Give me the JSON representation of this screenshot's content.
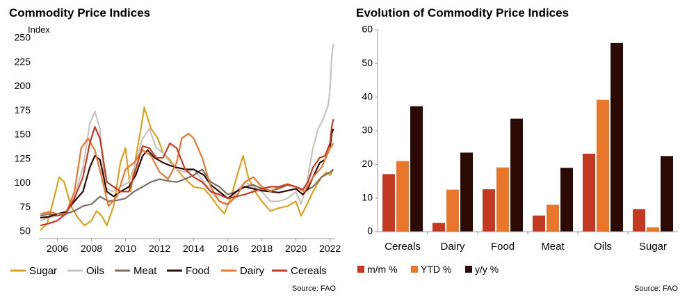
{
  "chart_data": [
    {
      "type": "line",
      "title": "Commodity Price Indices",
      "ylabel": "Index",
      "xlabel": "",
      "x_range": [
        2005,
        2022.3
      ],
      "x_ticks": [
        "2006",
        "2008",
        "2010",
        "2012",
        "2014",
        "2016",
        "2018",
        "2020",
        "2022"
      ],
      "ylim": [
        50,
        250
      ],
      "y_ticks": [
        "50",
        "75",
        "100",
        "125",
        "150",
        "175",
        "200",
        "225",
        "250"
      ],
      "grid": false,
      "legend_position": "bottom",
      "source": "Source: FAO",
      "series": [
        {
          "name": "Sugar",
          "color": "#D9A21B",
          "points": [
            [
              2005,
              55
            ],
            [
              2005.4,
              62
            ],
            [
              2005.8,
              88
            ],
            [
              2006.1,
              110
            ],
            [
              2006.4,
              105
            ],
            [
              2006.8,
              80
            ],
            [
              2007.2,
              68
            ],
            [
              2007.6,
              60
            ],
            [
              2008.0,
              65
            ],
            [
              2008.3,
              75
            ],
            [
              2008.6,
              70
            ],
            [
              2008.9,
              60
            ],
            [
              2009.3,
              80
            ],
            [
              2009.7,
              125
            ],
            [
              2010.0,
              140
            ],
            [
              2010.3,
              95
            ],
            [
              2010.6,
              130
            ],
            [
              2010.9,
              160
            ],
            [
              2011.1,
              182
            ],
            [
              2011.5,
              160
            ],
            [
              2011.9,
              150
            ],
            [
              2012.2,
              135
            ],
            [
              2012.6,
              128
            ],
            [
              2013.0,
              118
            ],
            [
              2013.5,
              108
            ],
            [
              2014.0,
              100
            ],
            [
              2014.6,
              98
            ],
            [
              2015.0,
              90
            ],
            [
              2015.5,
              78
            ],
            [
              2015.8,
              72
            ],
            [
              2016.2,
              90
            ],
            [
              2016.6,
              115
            ],
            [
              2016.9,
              132
            ],
            [
              2017.2,
              110
            ],
            [
              2017.6,
              95
            ],
            [
              2018.0,
              85
            ],
            [
              2018.5,
              75
            ],
            [
              2019.0,
              78
            ],
            [
              2019.5,
              80
            ],
            [
              2020.0,
              85
            ],
            [
              2020.3,
              70
            ],
            [
              2020.6,
              80
            ],
            [
              2021.0,
              95
            ],
            [
              2021.5,
              110
            ],
            [
              2021.8,
              115
            ],
            [
              2022.0,
              112
            ],
            [
              2022.2,
              118
            ]
          ]
        },
        {
          "name": "Oils",
          "color": "#C8C3BE",
          "points": [
            [
              2005,
              65
            ],
            [
              2005.5,
              68
            ],
            [
              2006.0,
              70
            ],
            [
              2006.5,
              72
            ],
            [
              2007.0,
              90
            ],
            [
              2007.5,
              120
            ],
            [
              2007.9,
              165
            ],
            [
              2008.2,
              178
            ],
            [
              2008.5,
              160
            ],
            [
              2008.8,
              100
            ],
            [
              2009.2,
              95
            ],
            [
              2009.7,
              100
            ],
            [
              2010.2,
              105
            ],
            [
              2010.6,
              125
            ],
            [
              2011.0,
              150
            ],
            [
              2011.4,
              160
            ],
            [
              2011.8,
              140
            ],
            [
              2012.2,
              135
            ],
            [
              2012.6,
              125
            ],
            [
              2013.0,
              118
            ],
            [
              2013.5,
              115
            ],
            [
              2014.0,
              118
            ],
            [
              2014.6,
              105
            ],
            [
              2015.0,
              95
            ],
            [
              2015.5,
              85
            ],
            [
              2016.0,
              80
            ],
            [
              2016.5,
              95
            ],
            [
              2017.0,
              105
            ],
            [
              2017.5,
              100
            ],
            [
              2018.0,
              95
            ],
            [
              2018.5,
              85
            ],
            [
              2019.0,
              85
            ],
            [
              2019.5,
              88
            ],
            [
              2020.0,
              95
            ],
            [
              2020.3,
              82
            ],
            [
              2020.6,
              100
            ],
            [
              2021.0,
              140
            ],
            [
              2021.3,
              160
            ],
            [
              2021.6,
              170
            ],
            [
              2021.9,
              185
            ],
            [
              2022.0,
              200
            ],
            [
              2022.1,
              235
            ],
            [
              2022.2,
              248
            ]
          ]
        },
        {
          "name": "Meat",
          "color": "#7B6E63",
          "points": [
            [
              2005,
              70
            ],
            [
              2005.5,
              72
            ],
            [
              2006.0,
              70
            ],
            [
              2006.5,
              72
            ],
            [
              2007.0,
              75
            ],
            [
              2007.5,
              80
            ],
            [
              2008.0,
              82
            ],
            [
              2008.5,
              90
            ],
            [
              2009.0,
              85
            ],
            [
              2009.5,
              86
            ],
            [
              2010.0,
              88
            ],
            [
              2010.5,
              95
            ],
            [
              2011.0,
              100
            ],
            [
              2011.5,
              105
            ],
            [
              2012.0,
              108
            ],
            [
              2012.5,
              106
            ],
            [
              2013.0,
              105
            ],
            [
              2013.5,
              108
            ],
            [
              2014.0,
              112
            ],
            [
              2014.5,
              118
            ],
            [
              2015.0,
              105
            ],
            [
              2015.5,
              100
            ],
            [
              2016.0,
              92
            ],
            [
              2016.5,
              95
            ],
            [
              2017.0,
              100
            ],
            [
              2017.5,
              102
            ],
            [
              2018.0,
              98
            ],
            [
              2018.5,
              96
            ],
            [
              2019.0,
              98
            ],
            [
              2019.5,
              102
            ],
            [
              2020.0,
              100
            ],
            [
              2020.5,
              95
            ],
            [
              2021.0,
              100
            ],
            [
              2021.5,
              110
            ],
            [
              2022.0,
              115
            ],
            [
              2022.2,
              118
            ]
          ]
        },
        {
          "name": "Food",
          "color": "#2B0A06",
          "points": [
            [
              2005,
              68
            ],
            [
              2005.5,
              69
            ],
            [
              2006.0,
              72
            ],
            [
              2006.5,
              74
            ],
            [
              2007.0,
              85
            ],
            [
              2007.5,
              95
            ],
            [
              2007.9,
              120
            ],
            [
              2008.2,
              132
            ],
            [
              2008.5,
              128
            ],
            [
              2008.9,
              95
            ],
            [
              2009.3,
              90
            ],
            [
              2009.7,
              95
            ],
            [
              2010.2,
              100
            ],
            [
              2010.6,
              112
            ],
            [
              2011.0,
              132
            ],
            [
              2011.3,
              138
            ],
            [
              2011.7,
              130
            ],
            [
              2012.2,
              125
            ],
            [
              2012.6,
              122
            ],
            [
              2013.0,
              120
            ],
            [
              2013.5,
              118
            ],
            [
              2014.0,
              118
            ],
            [
              2014.6,
              112
            ],
            [
              2015.0,
              102
            ],
            [
              2015.5,
              95
            ],
            [
              2016.0,
              88
            ],
            [
              2016.5,
              95
            ],
            [
              2017.0,
              100
            ],
            [
              2017.5,
              98
            ],
            [
              2018.0,
              96
            ],
            [
              2018.5,
              95
            ],
            [
              2019.0,
              94
            ],
            [
              2019.5,
              96
            ],
            [
              2020.0,
              98
            ],
            [
              2020.4,
              92
            ],
            [
              2020.7,
              98
            ],
            [
              2021.0,
              110
            ],
            [
              2021.4,
              125
            ],
            [
              2021.7,
              128
            ],
            [
              2022.0,
              140
            ],
            [
              2022.1,
              155
            ],
            [
              2022.2,
              160
            ]
          ]
        },
        {
          "name": "Dairy",
          "color": "#E8762B",
          "points": [
            [
              2005,
              72
            ],
            [
              2005.5,
              74
            ],
            [
              2006.0,
              72
            ],
            [
              2006.5,
              72
            ],
            [
              2007.0,
              95
            ],
            [
              2007.4,
              140
            ],
            [
              2007.8,
              150
            ],
            [
              2008.2,
              138
            ],
            [
              2008.6,
              110
            ],
            [
              2009.0,
              80
            ],
            [
              2009.5,
              90
            ],
            [
              2010.0,
              118
            ],
            [
              2010.5,
              125
            ],
            [
              2011.0,
              138
            ],
            [
              2011.5,
              132
            ],
            [
              2012.0,
              115
            ],
            [
              2012.5,
              108
            ],
            [
              2013.0,
              125
            ],
            [
              2013.3,
              150
            ],
            [
              2013.7,
              155
            ],
            [
              2014.0,
              150
            ],
            [
              2014.5,
              130
            ],
            [
              2015.0,
              100
            ],
            [
              2015.5,
              85
            ],
            [
              2016.0,
              82
            ],
            [
              2016.5,
              90
            ],
            [
              2017.0,
              105
            ],
            [
              2017.5,
              110
            ],
            [
              2018.0,
              100
            ],
            [
              2018.5,
              95
            ],
            [
              2019.0,
              100
            ],
            [
              2019.5,
              103
            ],
            [
              2020.0,
              100
            ],
            [
              2020.5,
              95
            ],
            [
              2021.0,
              110
            ],
            [
              2021.5,
              120
            ],
            [
              2022.0,
              140
            ],
            [
              2022.2,
              145
            ]
          ]
        },
        {
          "name": "Cereals",
          "color": "#C23A22",
          "points": [
            [
              2005,
              60
            ],
            [
              2005.5,
              62
            ],
            [
              2006.0,
              65
            ],
            [
              2006.5,
              72
            ],
            [
              2007.0,
              88
            ],
            [
              2007.5,
              110
            ],
            [
              2007.9,
              145
            ],
            [
              2008.2,
              162
            ],
            [
              2008.5,
              150
            ],
            [
              2008.9,
              105
            ],
            [
              2009.3,
              100
            ],
            [
              2009.7,
              95
            ],
            [
              2010.2,
              95
            ],
            [
              2010.6,
              118
            ],
            [
              2011.0,
              142
            ],
            [
              2011.4,
              140
            ],
            [
              2011.8,
              130
            ],
            [
              2012.2,
              130
            ],
            [
              2012.6,
              145
            ],
            [
              2013.0,
              140
            ],
            [
              2013.5,
              118
            ],
            [
              2014.0,
              110
            ],
            [
              2014.5,
              105
            ],
            [
              2015.0,
              95
            ],
            [
              2015.5,
              92
            ],
            [
              2016.0,
              88
            ],
            [
              2016.5,
              90
            ],
            [
              2017.0,
              92
            ],
            [
              2017.5,
              95
            ],
            [
              2018.0,
              98
            ],
            [
              2018.5,
              100
            ],
            [
              2019.0,
              100
            ],
            [
              2019.5,
              102
            ],
            [
              2020.0,
              100
            ],
            [
              2020.4,
              97
            ],
            [
              2020.7,
              105
            ],
            [
              2021.0,
              120
            ],
            [
              2021.4,
              130
            ],
            [
              2021.7,
              132
            ],
            [
              2022.0,
              145
            ],
            [
              2022.1,
              162
            ],
            [
              2022.2,
              170
            ]
          ]
        }
      ]
    },
    {
      "type": "bar",
      "title": "Evolution of Commodity Price Indices",
      "xlabel": "",
      "ylabel": "",
      "ylim": [
        0,
        60
      ],
      "y_ticks": [
        "0",
        "10",
        "20",
        "30",
        "40",
        "50",
        "60"
      ],
      "grid": false,
      "legend_position": "bottom",
      "source": "Source: FAO",
      "categories": [
        "Cereals",
        "Dairy",
        "Food",
        "Meat",
        "Oils",
        "Sugar"
      ],
      "series": [
        {
          "name": "m/m %",
          "color": "#C23A22",
          "values": [
            17.1,
            2.6,
            12.6,
            4.8,
            23.2,
            6.7
          ]
        },
        {
          "name": "YTD %",
          "color": "#E8762B",
          "values": [
            21.0,
            12.5,
            19.1,
            8.0,
            39.2,
            1.3
          ]
        },
        {
          "name": "y/y %",
          "color": "#2B0A06",
          "values": [
            37.3,
            23.5,
            33.6,
            19.0,
            56.1,
            22.5
          ]
        }
      ]
    }
  ]
}
